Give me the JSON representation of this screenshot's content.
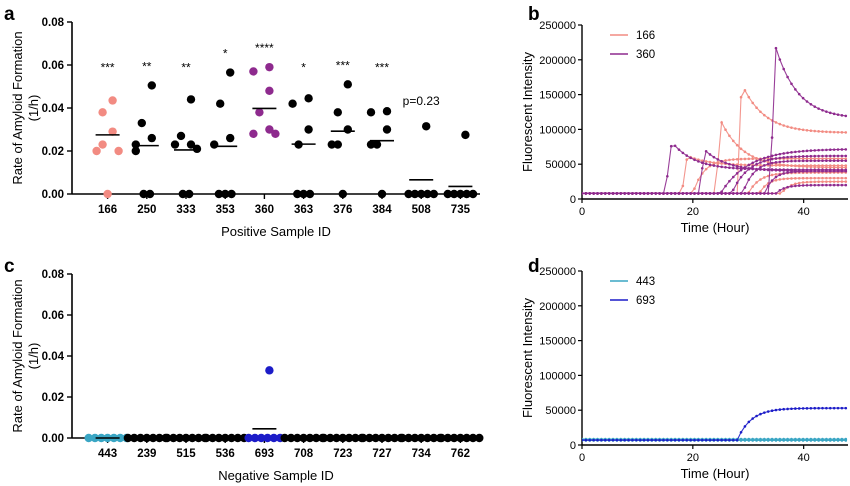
{
  "chart_data": [
    {
      "panel": "a",
      "type": "scatter",
      "xlabel": "Positive Sample ID",
      "ylabel_line1": "Rate of Amyloid Formation",
      "ylabel_line2": "(1/h)",
      "ylim": [
        0,
        0.08
      ],
      "yticks": [
        "0.00",
        "0.02",
        "0.04",
        "0.06",
        "0.08"
      ],
      "categories": [
        "166",
        "250",
        "333",
        "353",
        "360",
        "363",
        "376",
        "384",
        "508",
        "735"
      ],
      "colors": [
        "#f28b82",
        "#000000",
        "#000000",
        "#000000",
        "#8e2a8e",
        "#000000",
        "#000000",
        "#000000",
        "#000000",
        "#000000"
      ],
      "annotations": [
        "***",
        "**",
        "**",
        "*",
        "****",
        "*",
        "***",
        "***",
        "p=0.23",
        ""
      ],
      "means": [
        0.0275,
        0.0225,
        0.0205,
        0.0222,
        0.0398,
        0.0232,
        0.0292,
        0.0248,
        0.0066,
        0.0035
      ],
      "points": [
        [
          0.0435,
          0.038,
          0.029,
          0.023,
          0.02,
          0.02,
          0.0
        ],
        [
          0.0505,
          0.033,
          0.026,
          0.023,
          0.02,
          0.0,
          0.0
        ],
        [
          0.044,
          0.027,
          0.023,
          0.023,
          0.021,
          0.0,
          0.0
        ],
        [
          0.0565,
          0.042,
          0.026,
          0.023,
          0.0,
          0.0,
          0.0
        ],
        [
          0.059,
          0.057,
          0.048,
          0.038,
          0.03,
          0.028,
          0.028
        ],
        [
          0.0445,
          0.042,
          0.03,
          0.023,
          0.0,
          0.0,
          0.0
        ],
        [
          0.051,
          0.038,
          0.03,
          0.023,
          0.023,
          0.0
        ],
        [
          0.0385,
          0.038,
          0.03,
          0.023,
          0.023,
          0.0
        ],
        [
          0.0315,
          0.0,
          0.0,
          0.0,
          0.0,
          0.0
        ],
        [
          0.0275,
          0.0,
          0.0,
          0.0,
          0.0,
          0.0
        ]
      ]
    },
    {
      "panel": "b",
      "type": "line",
      "xlabel": "Time (Hour)",
      "ylabel": "Fluorescent Intensity",
      "xlim": [
        0,
        48
      ],
      "ylim": [
        0,
        250000
      ],
      "xticks": [
        "0",
        "20",
        "40"
      ],
      "yticks": [
        "0",
        "50000",
        "100000",
        "150000",
        "200000",
        "250000"
      ],
      "series": [
        {
          "name": "166",
          "color": "#f28b82"
        },
        {
          "name": "360",
          "color": "#8e2a8e"
        }
      ]
    },
    {
      "panel": "c",
      "type": "scatter",
      "xlabel": "Negative Sample ID",
      "ylabel_line1": "Rate of Amyloid Formation",
      "ylabel_line2": "(1/h)",
      "ylim": [
        0,
        0.08
      ],
      "yticks": [
        "0.00",
        "0.02",
        "0.04",
        "0.06",
        "0.08"
      ],
      "categories": [
        "443",
        "239",
        "515",
        "536",
        "693",
        "708",
        "723",
        "727",
        "734",
        "762"
      ],
      "colors": [
        "#3aa6c4",
        "#000000",
        "#000000",
        "#000000",
        "#1c1cc8",
        "#000000",
        "#000000",
        "#000000",
        "#000000",
        "#000000"
      ],
      "means": [
        0,
        0,
        0,
        0,
        0.0045,
        0,
        0,
        0,
        0,
        0
      ],
      "points": [
        [
          0,
          0,
          0,
          0,
          0,
          0,
          0
        ],
        [
          0,
          0,
          0,
          0,
          0,
          0,
          0
        ],
        [
          0,
          0,
          0,
          0,
          0,
          0,
          0
        ],
        [
          0,
          0,
          0,
          0,
          0,
          0,
          0
        ],
        [
          0.033,
          0,
          0,
          0,
          0,
          0,
          0
        ],
        [
          0,
          0,
          0,
          0,
          0,
          0,
          0
        ],
        [
          0,
          0,
          0,
          0,
          0,
          0,
          0
        ],
        [
          0,
          0,
          0,
          0,
          0,
          0,
          0
        ],
        [
          0,
          0,
          0,
          0,
          0,
          0,
          0
        ],
        [
          0,
          0,
          0,
          0,
          0,
          0,
          0
        ]
      ]
    },
    {
      "panel": "d",
      "type": "line",
      "xlabel": "Time (Hour)",
      "ylabel": "Fluorescent Intensity",
      "xlim": [
        0,
        48
      ],
      "ylim": [
        0,
        250000
      ],
      "xticks": [
        "0",
        "20",
        "40"
      ],
      "yticks": [
        "0",
        "50000",
        "100000",
        "150000",
        "200000",
        "250000"
      ],
      "series": [
        {
          "name": "443",
          "color": "#3aa6c4"
        },
        {
          "name": "693",
          "color": "#1c1cc8"
        }
      ]
    }
  ]
}
